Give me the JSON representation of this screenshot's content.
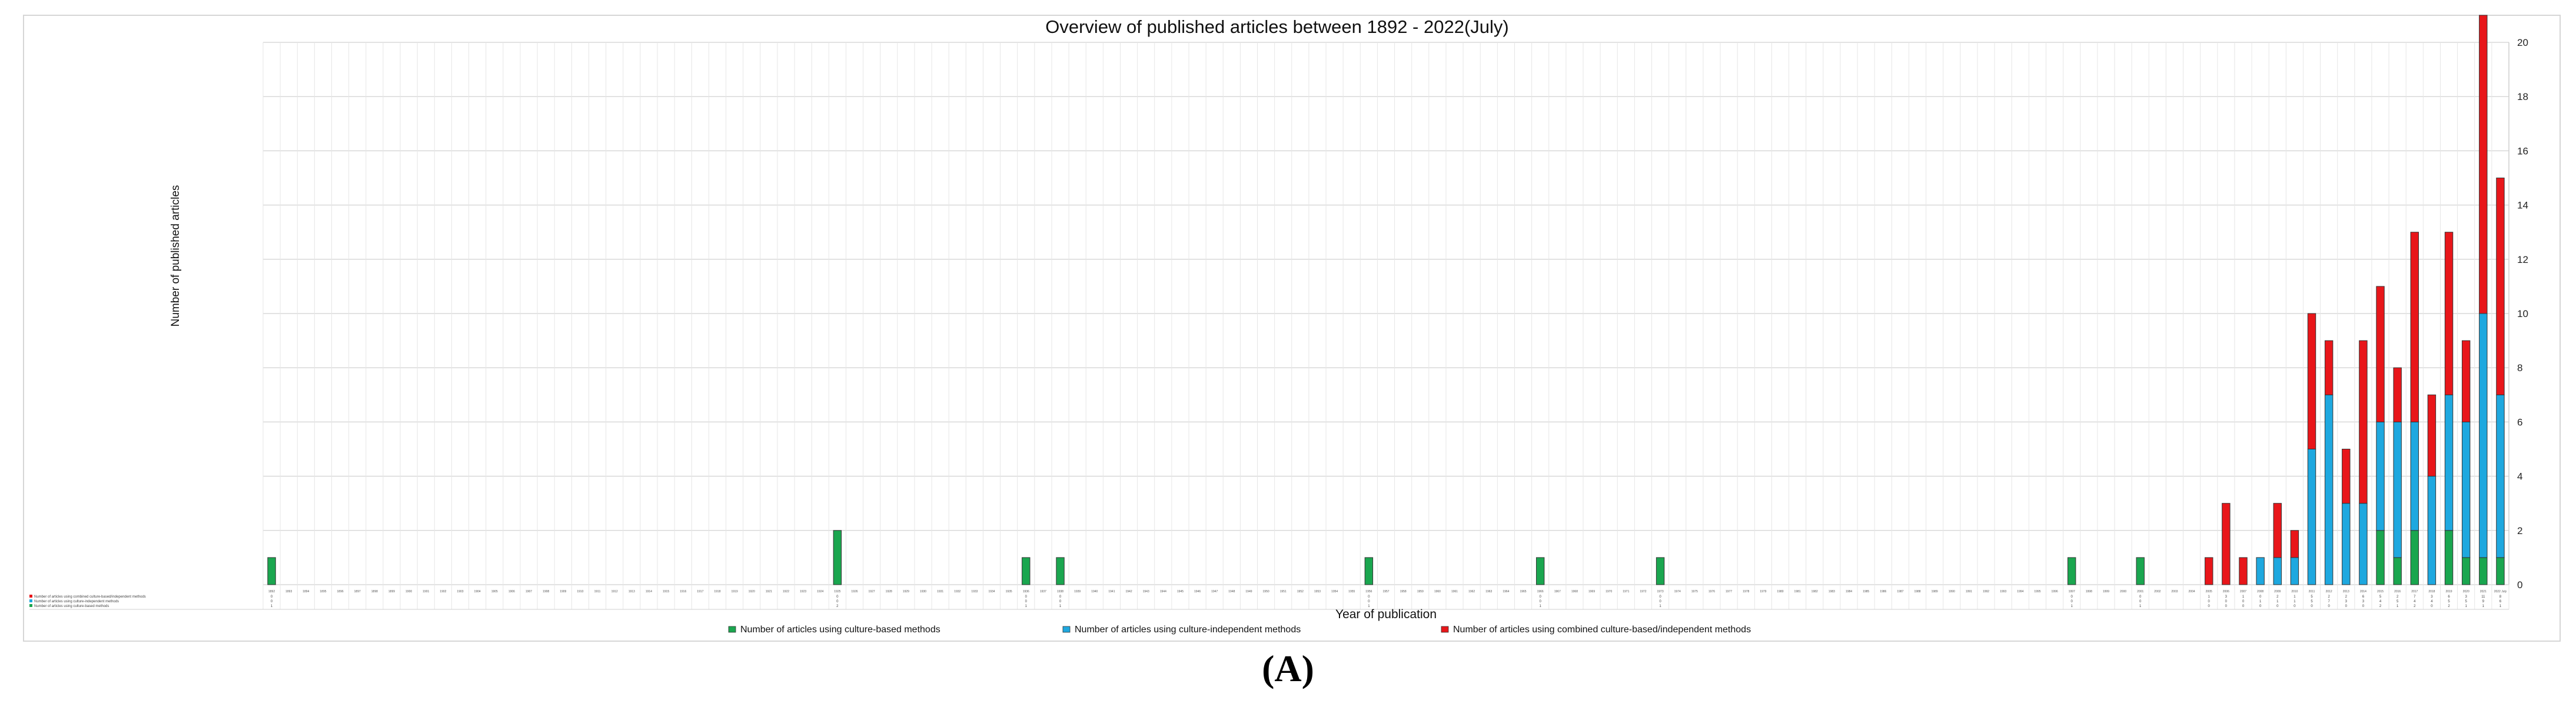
{
  "chart_data": {
    "type": "bar",
    "stacked": true,
    "title": "Overview of published articles between 1892 - 2022(July)",
    "xlabel": "Year of publication",
    "ylabel": "Number of published articles",
    "ylim": [
      0,
      20
    ],
    "y_ticks": [
      0,
      2,
      4,
      6,
      8,
      10,
      12,
      14,
      16,
      18,
      20
    ],
    "y_axis_side": "right",
    "grid": true,
    "legend_position": "bottom",
    "x_start": 1892,
    "x_end": 2022,
    "last_category_label": "2022 July",
    "series": [
      {
        "name": "Number of articles using culture-based methods",
        "color": "#1aa64f",
        "points": [
          [
            1892,
            1
          ],
          [
            1925,
            2
          ],
          [
            1936,
            1
          ],
          [
            1938,
            1
          ],
          [
            1956,
            1
          ],
          [
            1966,
            1
          ],
          [
            1973,
            1
          ],
          [
            1997,
            1
          ],
          [
            2001,
            1
          ],
          [
            2015,
            2
          ],
          [
            2016,
            1
          ],
          [
            2017,
            2
          ],
          [
            2019,
            2
          ],
          [
            2020,
            1
          ],
          [
            2021,
            1
          ],
          [
            2022,
            1
          ]
        ]
      },
      {
        "name": "Number of articles using culture-independent methods",
        "color": "#1ea8df",
        "points": [
          [
            2008,
            1
          ],
          [
            2009,
            1
          ],
          [
            2010,
            1
          ],
          [
            2011,
            5
          ],
          [
            2012,
            7
          ],
          [
            2013,
            3
          ],
          [
            2014,
            3
          ],
          [
            2015,
            4
          ],
          [
            2016,
            5
          ],
          [
            2017,
            4
          ],
          [
            2018,
            4
          ],
          [
            2019,
            5
          ],
          [
            2020,
            5
          ],
          [
            2021,
            9
          ],
          [
            2022,
            6
          ]
        ]
      },
      {
        "name": "Number of articles using combined culture-based/independent methods",
        "color": "#e8161a",
        "points": [
          [
            2005,
            1
          ],
          [
            2006,
            3
          ],
          [
            2007,
            1
          ],
          [
            2009,
            2
          ],
          [
            2010,
            1
          ],
          [
            2011,
            5
          ],
          [
            2012,
            2
          ],
          [
            2013,
            2
          ],
          [
            2014,
            6
          ],
          [
            2015,
            5
          ],
          [
            2016,
            2
          ],
          [
            2017,
            7
          ],
          [
            2018,
            3
          ],
          [
            2019,
            6
          ],
          [
            2020,
            3
          ],
          [
            2021,
            11
          ],
          [
            2022,
            8
          ]
        ]
      }
    ],
    "table_row_labels": [
      "Number of articles using combined culture-based/independent methods",
      "Number of articles using culture-independent methods",
      "Number of articles using culture-based methods"
    ]
  },
  "caption": "(A)"
}
